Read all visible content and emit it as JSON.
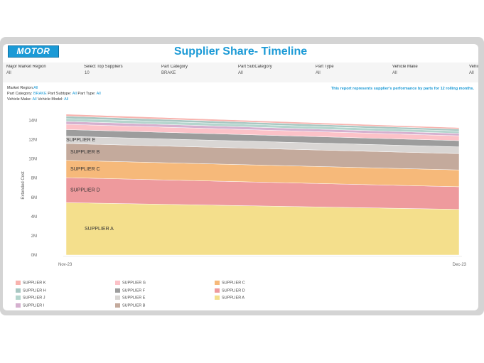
{
  "brand": {
    "logo_text": "MOTOR"
  },
  "header": {
    "title": "Supplier Share- Timeline"
  },
  "filters": [
    {
      "label": "Major Market Region",
      "value": "All"
    },
    {
      "label": "Select Top Suppliers",
      "value": "10"
    },
    {
      "label": "Part Category",
      "value": "BRAKE"
    },
    {
      "label": "Part SubCategory",
      "value": "All"
    },
    {
      "label": "Part Type",
      "value": "All"
    },
    {
      "label": "Vehicle Make",
      "value": "All"
    },
    {
      "label": "Vehic",
      "value": "All"
    }
  ],
  "summary": {
    "region_label": "Market Region:",
    "region_value": "All",
    "part_cat_label": "Part Category:",
    "part_cat_value": "BRAKE",
    "subtype_label": "Part Subtype:",
    "subtype_value": "All",
    "ptype_label": "Part Type:",
    "ptype_value": "All",
    "make_label": "Vehicle Make:",
    "make_value": "All",
    "model_label": "Vehicle Model:",
    "model_value": "All"
  },
  "note": "This report represents supplier's performance by parts for 12 rolling months.",
  "chart_data": {
    "type": "area",
    "stacked": true,
    "x": [
      "Nov-23",
      "Dec-23"
    ],
    "ylabel": "Extended Cost",
    "ylim": [
      0,
      15
    ],
    "yticks": [
      "0M",
      "2M",
      "4M",
      "6M",
      "8M",
      "10M",
      "12M",
      "14M"
    ],
    "series": [
      {
        "name": "SUPPLIER A",
        "values": [
          5.45,
          4.75
        ],
        "color": "#f4df8c",
        "label_shown": true
      },
      {
        "name": "SUPPLIER D",
        "values": [
          2.6,
          2.35
        ],
        "color": "#ee9a9d",
        "label_shown": true
      },
      {
        "name": "SUPPLIER C",
        "values": [
          1.8,
          1.75
        ],
        "color": "#f6b97a",
        "label_shown": true
      },
      {
        "name": "SUPPLIER B",
        "values": [
          1.75,
          1.7
        ],
        "color": "#c4aa9c",
        "label_shown": true
      },
      {
        "name": "SUPPLIER E",
        "values": [
          0.75,
          0.7
        ],
        "color": "#d9d6d4",
        "label_shown": true
      },
      {
        "name": "SUPPLIER F",
        "values": [
          0.7,
          0.65
        ],
        "color": "#9d9d9d",
        "label_shown": false
      },
      {
        "name": "SUPPLIER G",
        "values": [
          0.55,
          0.5
        ],
        "color": "#fcc2c8",
        "label_shown": false
      },
      {
        "name": "SUPPLIER I",
        "values": [
          0.3,
          0.25
        ],
        "color": "#d5b0cf",
        "label_shown": false
      },
      {
        "name": "SUPPLIER J",
        "values": [
          0.3,
          0.25
        ],
        "color": "#b4d5cd",
        "label_shown": false
      },
      {
        "name": "SUPPLIER H",
        "values": [
          0.25,
          0.2
        ],
        "color": "#a7c7c2",
        "label_shown": false
      },
      {
        "name": "SUPPLIER K",
        "values": [
          0.2,
          0.15
        ],
        "color": "#f8b3ae",
        "label_shown": false
      }
    ],
    "legend": [
      {
        "name": "SUPPLIER K",
        "color": "#f8b3ae"
      },
      {
        "name": "SUPPLIER H",
        "color": "#a7c7c2"
      },
      {
        "name": "SUPPLIER J",
        "color": "#b4d5cd"
      },
      {
        "name": "SUPPLIER I",
        "color": "#d5b0cf"
      },
      {
        "name": "SUPPLIER G",
        "color": "#fcc2c8"
      },
      {
        "name": "SUPPLIER F",
        "color": "#9d9d9d"
      },
      {
        "name": "SUPPLIER E",
        "color": "#d9d6d4"
      },
      {
        "name": "SUPPLIER B",
        "color": "#c4aa9c"
      },
      {
        "name": "SUPPLIER C",
        "color": "#f6b97a"
      },
      {
        "name": "SUPPLIER D",
        "color": "#ee9a9d"
      },
      {
        "name": "SUPPLIER A",
        "color": "#f4df8c"
      }
    ],
    "legend_placement": "bottom"
  }
}
